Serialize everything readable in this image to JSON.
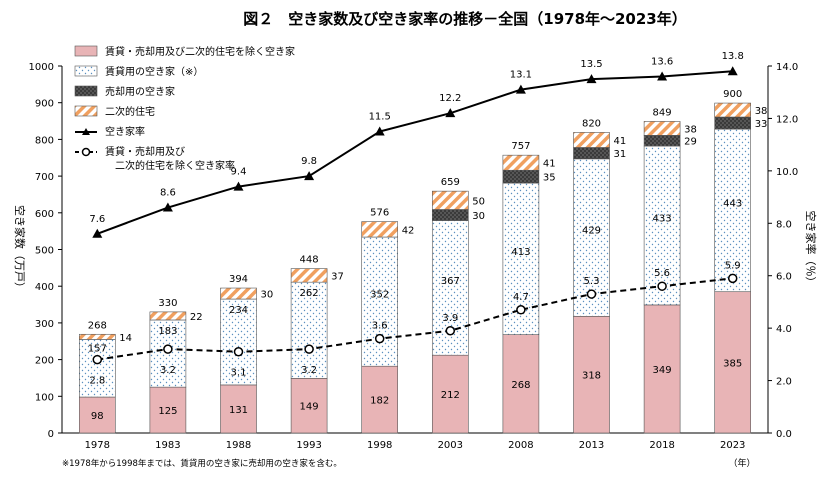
{
  "chart_data": {
    "type": "bar",
    "title": "図２　空き家数及び空き家率の推移－全国（1978年～2023年）",
    "categories": [
      "1978",
      "1983",
      "1988",
      "1993",
      "1998",
      "2003",
      "2008",
      "2013",
      "2018",
      "2023"
    ],
    "x_unit_label": "（年）",
    "left_axis": {
      "label": "空き家数（万戸）",
      "range": [
        0,
        1000
      ],
      "ticks": [
        "0",
        "100",
        "200",
        "300",
        "400",
        "500",
        "600",
        "700",
        "800",
        "900",
        "1000"
      ]
    },
    "right_axis": {
      "label": "空き家率（％）",
      "range": [
        0,
        14
      ],
      "ticks": [
        "0.0",
        "2.0",
        "4.0",
        "6.0",
        "8.0",
        "10.0",
        "12.0",
        "14.0"
      ]
    },
    "grid": false,
    "legend_position": "top-left",
    "bar_series": [
      {
        "name": "賃貸・売却用及び二次的住宅を除く空き家",
        "color": "#e8b4b6",
        "pattern": "solid",
        "values": [
          98,
          125,
          131,
          149,
          182,
          212,
          268,
          318,
          349,
          385
        ],
        "labels": [
          "98",
          "125",
          "131",
          "149",
          "182",
          "212",
          "268",
          "318",
          "349",
          "385"
        ]
      },
      {
        "name": "賃貸用の空き家（※）",
        "color": "#5b8fbf",
        "pattern": "dots",
        "values": [
          157,
          183,
          234,
          262,
          352,
          367,
          413,
          429,
          433,
          443
        ],
        "labels": [
          "157",
          "183",
          "234",
          "262",
          "352",
          "367",
          "413",
          "429",
          "433",
          "443"
        ]
      },
      {
        "name": "売却用の空き家",
        "color": "#404040",
        "pattern": "dark",
        "values": [
          0,
          0,
          0,
          0,
          0,
          30,
          35,
          31,
          29,
          33
        ],
        "labels": [
          "",
          "",
          "",
          "",
          "",
          "30",
          "35",
          "31",
          "29",
          "33"
        ]
      },
      {
        "name": "二次的住宅",
        "color": "#f0a060",
        "pattern": "stripes",
        "values": [
          14,
          22,
          30,
          37,
          42,
          50,
          41,
          41,
          38,
          38
        ],
        "labels": [
          "14",
          "22",
          "30",
          "37",
          "42",
          "50",
          "41",
          "41",
          "38",
          "38"
        ]
      }
    ],
    "totals": [
      "268",
      "330",
      "394",
      "448",
      "576",
      "659",
      "757",
      "820",
      "849",
      "900"
    ],
    "line_series": [
      {
        "name": "空き家率",
        "axis": "right",
        "marker": "triangle",
        "style": "solid",
        "values": [
          7.6,
          8.6,
          9.4,
          9.8,
          11.5,
          12.2,
          13.1,
          13.5,
          13.6,
          13.8
        ],
        "labels": [
          "7.6",
          "8.6",
          "9.4",
          "9.8",
          "11.5",
          "12.2",
          "13.1",
          "13.5",
          "13.6",
          "13.8"
        ]
      },
      {
        "name": "賃貸・売却用及び\n二次的住宅を除く空き家率",
        "axis": "right",
        "marker": "circle",
        "style": "dashed",
        "values": [
          2.8,
          3.2,
          3.1,
          3.2,
          3.6,
          3.9,
          4.7,
          5.3,
          5.6,
          5.9
        ],
        "labels": [
          "2.8",
          "3.2",
          "3.1",
          "3.2",
          "3.6",
          "3.9",
          "4.7",
          "5.3",
          "5.6",
          "5.9"
        ]
      }
    ],
    "legend": [
      "賃貸・売却用及び二次的住宅を除く空き家",
      "賃貸用の空き家（※）",
      "売却用の空き家",
      "二次的住宅",
      "空き家率",
      "賃貸・売却用及び",
      "二次的住宅を除く空き家率"
    ],
    "footnote": "※1978年から1998年までは、賃貸用の空き家に売却用の空き家を含む。"
  }
}
